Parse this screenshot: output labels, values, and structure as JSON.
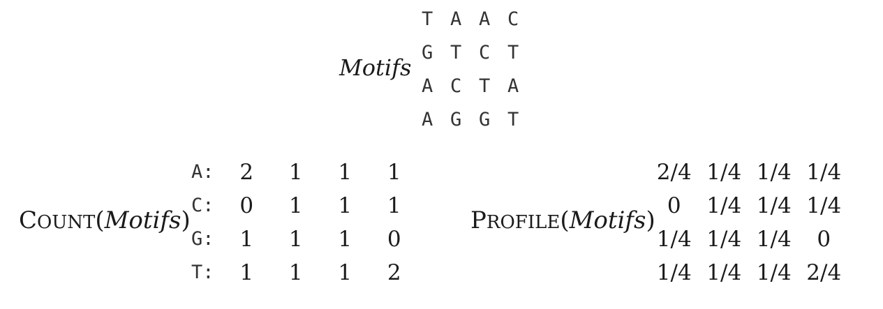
{
  "motifs_label": "Motifs",
  "motifs": [
    [
      "T",
      "A",
      "A",
      "C"
    ],
    [
      "G",
      "T",
      "C",
      "T"
    ],
    [
      "A",
      "C",
      "T",
      "A"
    ],
    [
      "A",
      "G",
      "G",
      "T"
    ]
  ],
  "count": {
    "label_initial": "C",
    "label_rest": "OUNT",
    "label_open": "(",
    "label_arg": "Motifs",
    "label_close": ")",
    "nucleotides": [
      "A:",
      "C:",
      "G:",
      "T:"
    ],
    "rows": [
      [
        "2",
        "1",
        "1",
        "1"
      ],
      [
        "0",
        "1",
        "1",
        "1"
      ],
      [
        "1",
        "1",
        "1",
        "0"
      ],
      [
        "1",
        "1",
        "1",
        "2"
      ]
    ]
  },
  "profile": {
    "label_initial": "P",
    "label_rest": "ROFILE",
    "label_open": "(",
    "label_arg": "Motifs",
    "label_close": ")",
    "rows": [
      [
        "2/4",
        "1/4",
        "1/4",
        "1/4"
      ],
      [
        "0",
        "1/4",
        "1/4",
        "1/4"
      ],
      [
        "1/4",
        "1/4",
        "1/4",
        "0"
      ],
      [
        "1/4",
        "1/4",
        "1/4",
        "2/4"
      ]
    ]
  }
}
